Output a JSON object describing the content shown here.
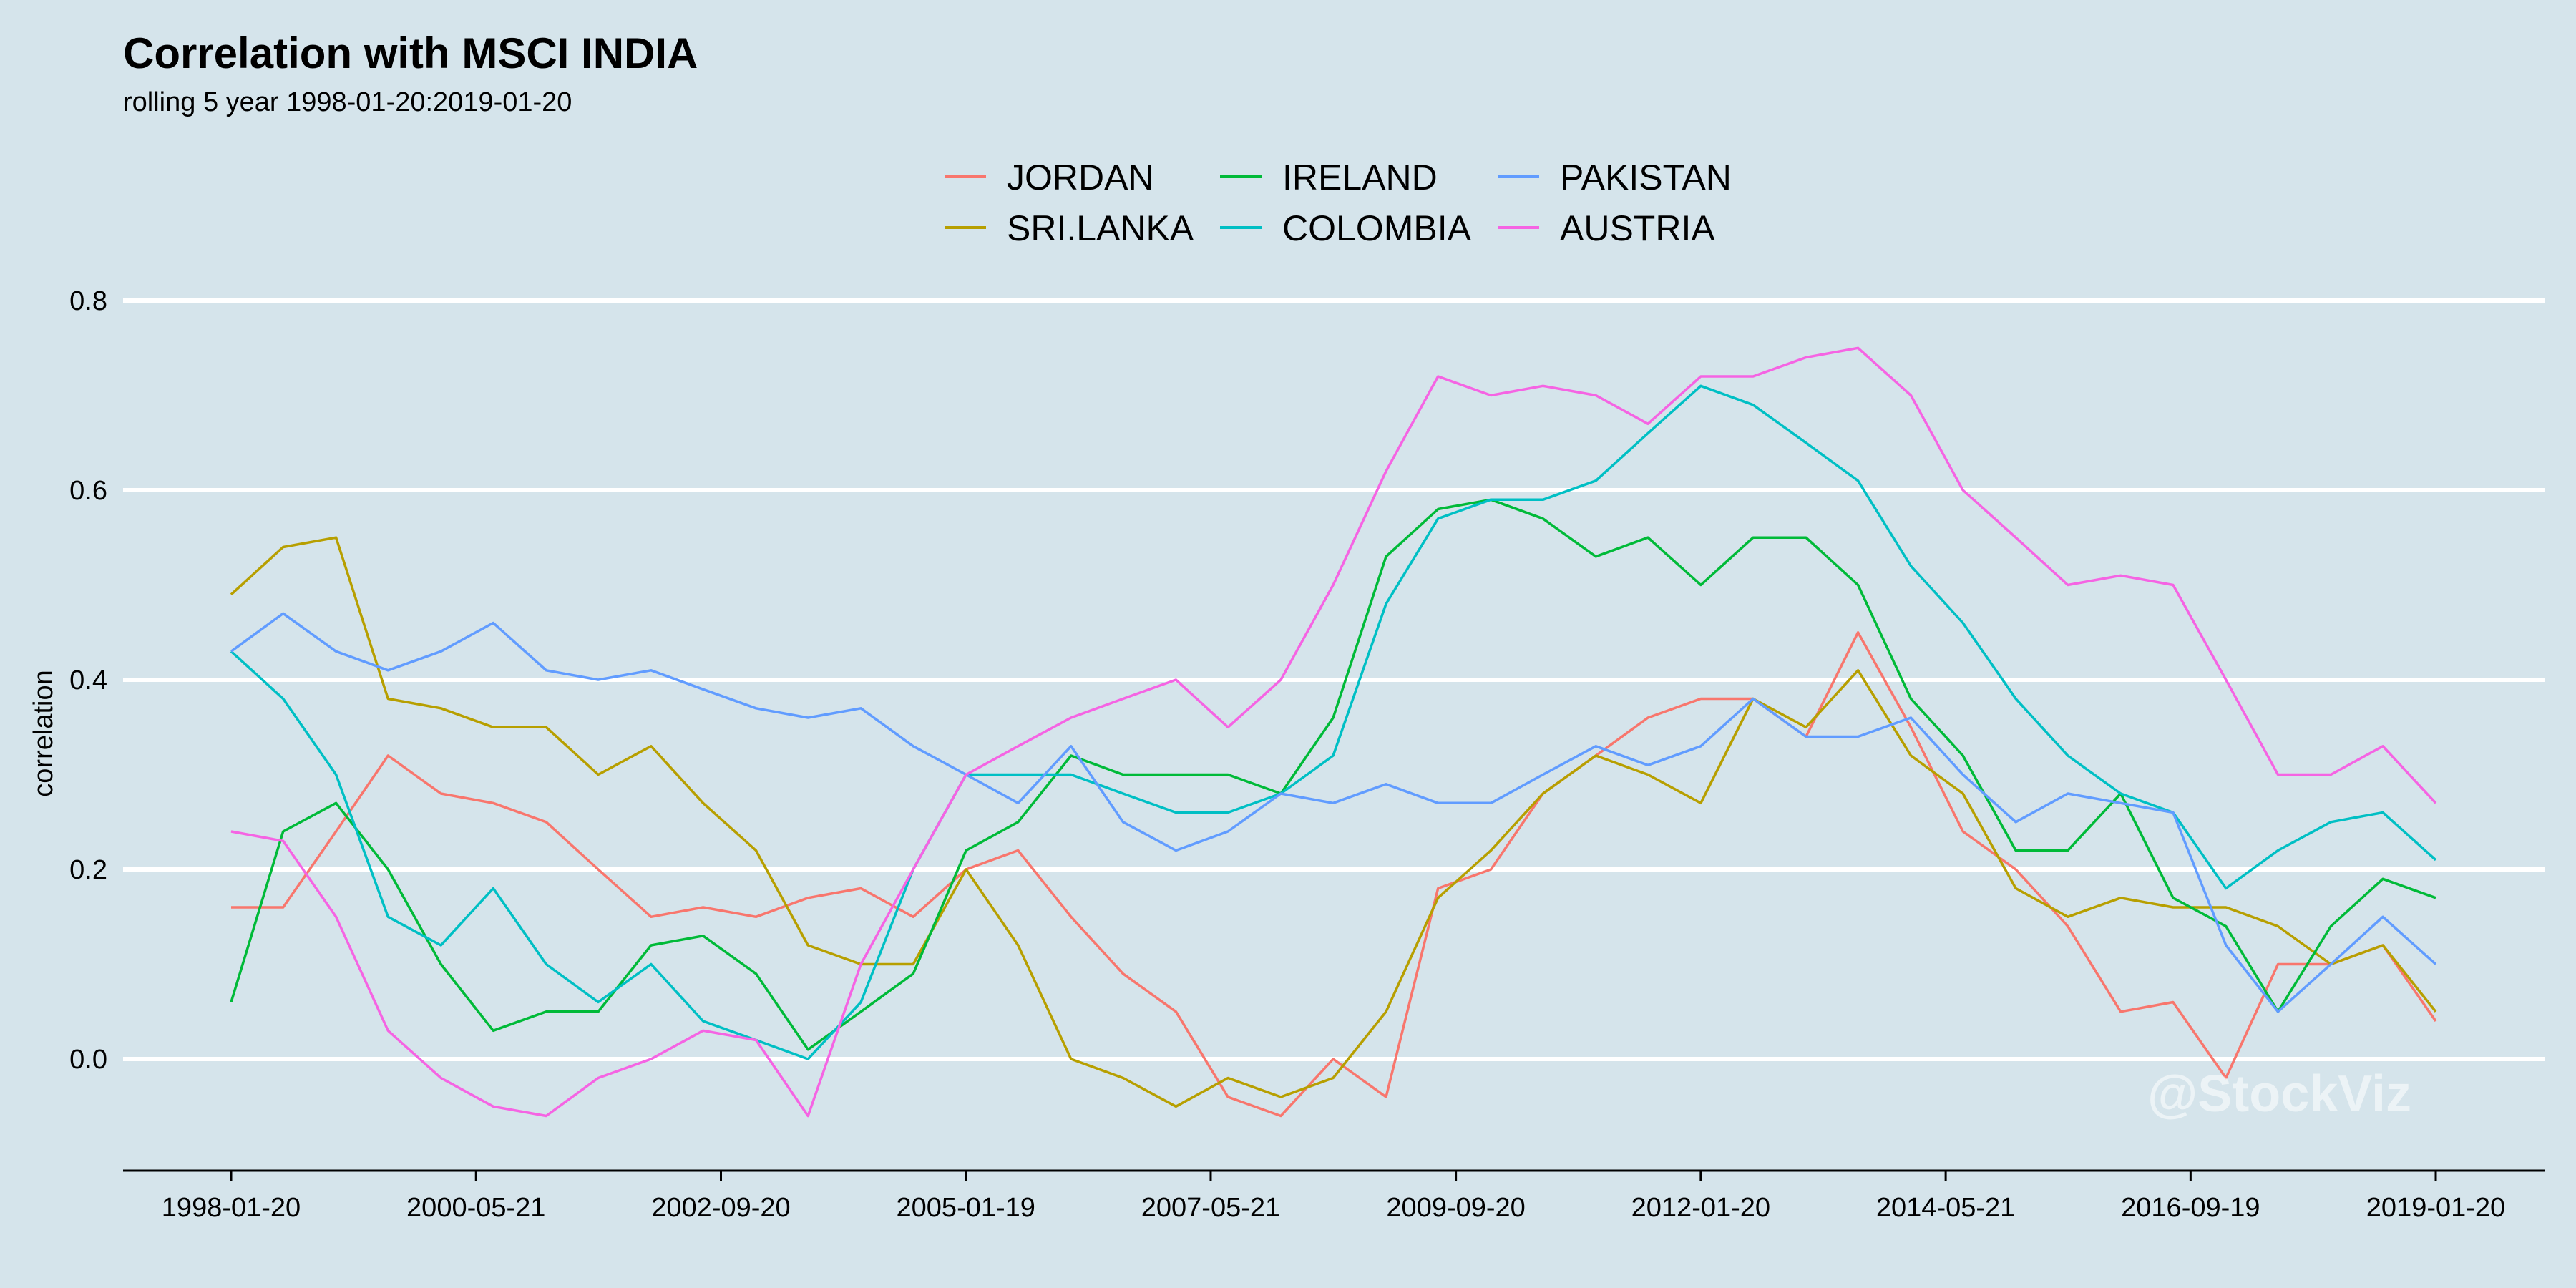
{
  "title": "Correlation with MSCI INDIA",
  "subtitle": "rolling 5 year 1998-01-20:2019-01-20",
  "watermark": "@StockViz",
  "chart_data": {
    "type": "line",
    "title": "Correlation with MSCI INDIA",
    "subtitle": "rolling 5 year 1998-01-20:2019-01-20",
    "xlabel": "",
    "ylabel": "correlation",
    "xlim": [
      "1998-01-20",
      "2019-01-20"
    ],
    "ylim": [
      -0.12,
      0.8
    ],
    "x_ticks": [
      "1998-01-20",
      "2000-05-21",
      "2002-09-20",
      "2005-01-19",
      "2007-05-21",
      "2009-09-20",
      "2012-01-20",
      "2014-05-21",
      "2016-09-19",
      "2019-01-20"
    ],
    "y_ticks": [
      0.0,
      0.2,
      0.4,
      0.6,
      0.8
    ],
    "y_tick_labels": [
      "0.0",
      "0.2",
      "0.4",
      "0.6",
      "0.8"
    ],
    "grid": "horizontal",
    "legend_position": "top",
    "x": [
      "1998-01-20",
      "1998-07-20",
      "1999-01-20",
      "1999-07-20",
      "2000-01-20",
      "2000-07-20",
      "2001-01-20",
      "2001-07-20",
      "2002-01-20",
      "2002-07-20",
      "2003-01-20",
      "2003-07-20",
      "2004-01-20",
      "2004-07-20",
      "2005-01-20",
      "2005-07-20",
      "2006-01-20",
      "2006-07-20",
      "2007-01-20",
      "2007-07-20",
      "2008-01-20",
      "2008-07-20",
      "2009-01-20",
      "2009-07-20",
      "2010-01-20",
      "2010-07-20",
      "2011-01-20",
      "2011-07-20",
      "2012-01-20",
      "2012-07-20",
      "2013-01-20",
      "2013-07-20",
      "2014-01-20",
      "2014-07-20",
      "2015-01-20",
      "2015-07-20",
      "2016-01-20",
      "2016-07-20",
      "2017-01-20",
      "2017-07-20",
      "2018-01-20",
      "2018-07-20",
      "2019-01-20"
    ],
    "series": [
      {
        "name": "JORDAN",
        "color": "#F8766D",
        "values": [
          0.16,
          0.16,
          0.24,
          0.32,
          0.28,
          0.27,
          0.25,
          0.2,
          0.15,
          0.16,
          0.15,
          0.17,
          0.18,
          0.15,
          0.2,
          0.22,
          0.15,
          0.09,
          0.05,
          -0.04,
          -0.06,
          0.0,
          -0.04,
          0.18,
          0.2,
          0.28,
          0.32,
          0.36,
          0.38,
          0.38,
          0.34,
          0.45,
          0.35,
          0.24,
          0.2,
          0.14,
          0.05,
          0.06,
          -0.02,
          0.1,
          0.1,
          0.12,
          0.04
        ]
      },
      {
        "name": "SRI.LANKA",
        "color": "#B79F00",
        "values": [
          0.49,
          0.54,
          0.55,
          0.38,
          0.37,
          0.35,
          0.35,
          0.3,
          0.33,
          0.27,
          0.22,
          0.12,
          0.1,
          0.1,
          0.2,
          0.12,
          0.0,
          -0.02,
          -0.05,
          -0.02,
          -0.04,
          -0.02,
          0.05,
          0.17,
          0.22,
          0.28,
          0.32,
          0.3,
          0.27,
          0.38,
          0.35,
          0.41,
          0.32,
          0.28,
          0.18,
          0.15,
          0.17,
          0.16,
          0.16,
          0.14,
          0.1,
          0.12,
          0.05
        ]
      },
      {
        "name": "IRELAND",
        "color": "#00BA38",
        "values": [
          0.06,
          0.24,
          0.27,
          0.2,
          0.1,
          0.03,
          0.05,
          0.05,
          0.12,
          0.13,
          0.09,
          0.01,
          0.05,
          0.09,
          0.22,
          0.25,
          0.32,
          0.3,
          0.3,
          0.3,
          0.28,
          0.36,
          0.53,
          0.58,
          0.59,
          0.57,
          0.53,
          0.55,
          0.5,
          0.55,
          0.55,
          0.5,
          0.38,
          0.32,
          0.22,
          0.22,
          0.28,
          0.17,
          0.14,
          0.05,
          0.14,
          0.19,
          0.17
        ]
      },
      {
        "name": "COLOMBIA",
        "color": "#00BFC4",
        "values": [
          0.43,
          0.38,
          0.3,
          0.15,
          0.12,
          0.18,
          0.1,
          0.06,
          0.1,
          0.04,
          0.02,
          0.0,
          0.06,
          0.2,
          0.3,
          0.3,
          0.3,
          0.28,
          0.26,
          0.26,
          0.28,
          0.32,
          0.48,
          0.57,
          0.59,
          0.59,
          0.61,
          0.66,
          0.71,
          0.69,
          0.65,
          0.61,
          0.52,
          0.46,
          0.38,
          0.32,
          0.28,
          0.26,
          0.18,
          0.22,
          0.25,
          0.26,
          0.21
        ]
      },
      {
        "name": "PAKISTAN",
        "color": "#619CFF",
        "values": [
          0.43,
          0.47,
          0.43,
          0.41,
          0.43,
          0.46,
          0.41,
          0.4,
          0.41,
          0.39,
          0.37,
          0.36,
          0.37,
          0.33,
          0.3,
          0.27,
          0.33,
          0.25,
          0.22,
          0.24,
          0.28,
          0.27,
          0.29,
          0.27,
          0.27,
          0.3,
          0.33,
          0.31,
          0.33,
          0.38,
          0.34,
          0.34,
          0.36,
          0.3,
          0.25,
          0.28,
          0.27,
          0.26,
          0.12,
          0.05,
          0.1,
          0.15,
          0.1
        ]
      },
      {
        "name": "AUSTRIA",
        "color": "#F564E3",
        "values": [
          0.24,
          0.23,
          0.15,
          0.03,
          -0.02,
          -0.05,
          -0.06,
          -0.02,
          0.0,
          0.03,
          0.02,
          -0.06,
          0.1,
          0.2,
          0.3,
          0.33,
          0.36,
          0.38,
          0.4,
          0.35,
          0.4,
          0.5,
          0.62,
          0.72,
          0.7,
          0.71,
          0.7,
          0.67,
          0.72,
          0.72,
          0.74,
          0.75,
          0.7,
          0.6,
          0.55,
          0.5,
          0.51,
          0.5,
          0.4,
          0.3,
          0.3,
          0.33,
          0.27
        ]
      }
    ]
  }
}
